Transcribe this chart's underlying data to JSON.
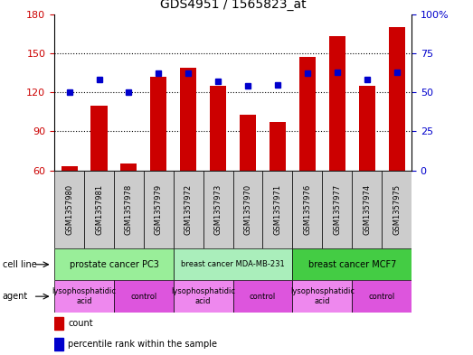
{
  "title": "GDS4951 / 1565823_at",
  "samples": [
    "GSM1357980",
    "GSM1357981",
    "GSM1357978",
    "GSM1357979",
    "GSM1357972",
    "GSM1357973",
    "GSM1357970",
    "GSM1357971",
    "GSM1357976",
    "GSM1357977",
    "GSM1357974",
    "GSM1357975"
  ],
  "counts": [
    63,
    110,
    65,
    132,
    139,
    125,
    103,
    97,
    147,
    163,
    125,
    170
  ],
  "percentile_ranks": [
    50,
    58,
    50,
    62,
    62,
    57,
    54,
    55,
    62,
    63,
    58,
    63
  ],
  "bar_bottom": 60,
  "ylim_left": [
    60,
    180
  ],
  "ylim_right": [
    0,
    100
  ],
  "yticks_left": [
    60,
    90,
    120,
    150,
    180
  ],
  "yticks_right": [
    0,
    25,
    50,
    75,
    100
  ],
  "cell_line_groups": [
    {
      "label": "prostate cancer PC3",
      "start": 0,
      "end": 3,
      "color": "#99EE99"
    },
    {
      "label": "breast cancer MDA-MB-231",
      "start": 4,
      "end": 7,
      "color": "#99EE99"
    },
    {
      "label": "breast cancer MCF7",
      "start": 8,
      "end": 11,
      "color": "#44CC44"
    }
  ],
  "agent_groups": [
    {
      "label": "lysophosphatidic\nacid",
      "start": 0,
      "end": 1,
      "color": "#EE88EE"
    },
    {
      "label": "control",
      "start": 2,
      "end": 3,
      "color": "#DD55DD"
    },
    {
      "label": "lysophosphatidic\nacid",
      "start": 4,
      "end": 5,
      "color": "#EE88EE"
    },
    {
      "label": "control",
      "start": 6,
      "end": 7,
      "color": "#DD55DD"
    },
    {
      "label": "lysophosphatidic\nacid",
      "start": 8,
      "end": 9,
      "color": "#EE88EE"
    },
    {
      "label": "control",
      "start": 10,
      "end": 11,
      "color": "#DD55DD"
    }
  ],
  "bar_color": "#CC0000",
  "dot_color": "#0000CC",
  "grid_color": "#000000",
  "left_axis_color": "#CC0000",
  "right_axis_color": "#0000CC",
  "sample_box_color": "#CCCCCC",
  "title_fontsize": 10,
  "tick_fontsize": 8,
  "label_fontsize": 7,
  "sample_fontsize": 6
}
